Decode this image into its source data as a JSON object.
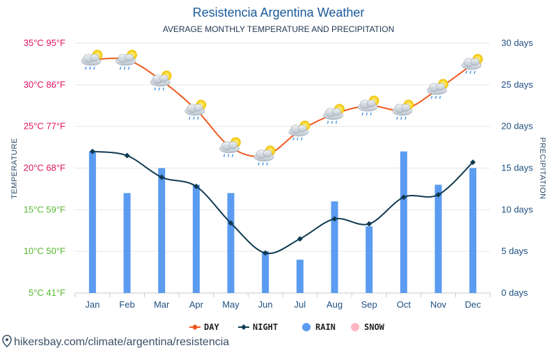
{
  "chart_data": {
    "type": "line",
    "title": "Resistencia Argentina Weather",
    "subtitle": "AVERAGE MONTHLY TEMPERATURE AND PRECIPITATION",
    "categories": [
      "Jan",
      "Feb",
      "Mar",
      "Apr",
      "May",
      "Jun",
      "Jul",
      "Aug",
      "Sep",
      "Oct",
      "Nov",
      "Dec"
    ],
    "series": [
      {
        "name": "DAY",
        "type": "line",
        "axis": "temperature",
        "color": "#f05a1e",
        "values": [
          33,
          33,
          30.5,
          27,
          22.5,
          21.5,
          24.5,
          26.5,
          27.5,
          27,
          29.5,
          32.5
        ]
      },
      {
        "name": "NIGHT",
        "type": "line",
        "axis": "temperature",
        "color": "#0f3a52",
        "values": [
          22,
          21.5,
          18.9,
          17.8,
          13.4,
          9.8,
          11.5,
          13.9,
          13.3,
          16.5,
          16.8,
          20.7
        ]
      },
      {
        "name": "RAIN",
        "type": "bar",
        "axis": "precipitation",
        "color": "#5b9bf0",
        "values": [
          17,
          12,
          15,
          13,
          12,
          5,
          4,
          11,
          8,
          17,
          13,
          15
        ]
      },
      {
        "name": "SNOW",
        "type": "bar",
        "axis": "precipitation",
        "color": "#ffb6c1",
        "values": [
          0,
          0,
          0,
          0,
          0,
          0,
          0,
          0,
          0,
          0,
          0,
          0
        ]
      }
    ],
    "y_left": {
      "label": "TEMPERATURE",
      "ylim": [
        5,
        35
      ],
      "ticks": [
        {
          "value": 35,
          "label": "35°C 95°F",
          "color": "#e0115f"
        },
        {
          "value": 30,
          "label": "30°C 86°F",
          "color": "#e0115f"
        },
        {
          "value": 25,
          "label": "25°C 77°F",
          "color": "#e0115f"
        },
        {
          "value": 20,
          "label": "20°C 68°F",
          "color": "#e0115f"
        },
        {
          "value": 15,
          "label": "15°C 59°F",
          "color": "#55b82e"
        },
        {
          "value": 10,
          "label": "10°C 50°F",
          "color": "#55b82e"
        },
        {
          "value": 5,
          "label": "5°C 41°F",
          "color": "#55b82e"
        }
      ]
    },
    "y_right": {
      "label": "PRECIPITATION",
      "ylim": [
        0,
        30
      ],
      "ticks": [
        {
          "value": 30,
          "label": "30 days"
        },
        {
          "value": 25,
          "label": "25 days"
        },
        {
          "value": 20,
          "label": "20 days"
        },
        {
          "value": 15,
          "label": "15 days"
        },
        {
          "value": 10,
          "label": "10 days"
        },
        {
          "value": 5,
          "label": "5 days"
        },
        {
          "value": 0,
          "label": "0 days"
        }
      ]
    },
    "grid": true,
    "legend_position": "bottom-center",
    "weather_icons": "sun-behind-rain-cloud-icon"
  },
  "legend": [
    {
      "label": "DAY",
      "color": "#f05a1e",
      "marker": "line-circle"
    },
    {
      "label": "NIGHT",
      "color": "#0f3a52",
      "marker": "line-diamond"
    },
    {
      "label": "RAIN",
      "color": "#5b9bf0",
      "marker": "circle"
    },
    {
      "label": "SNOW",
      "color": "#ffb6c1",
      "marker": "circle"
    }
  ],
  "source": "hikersbay.com/climate/argentina/resistencia",
  "colors": {
    "grid": "#e6e6e6",
    "right_axis": "#1f4f80"
  }
}
